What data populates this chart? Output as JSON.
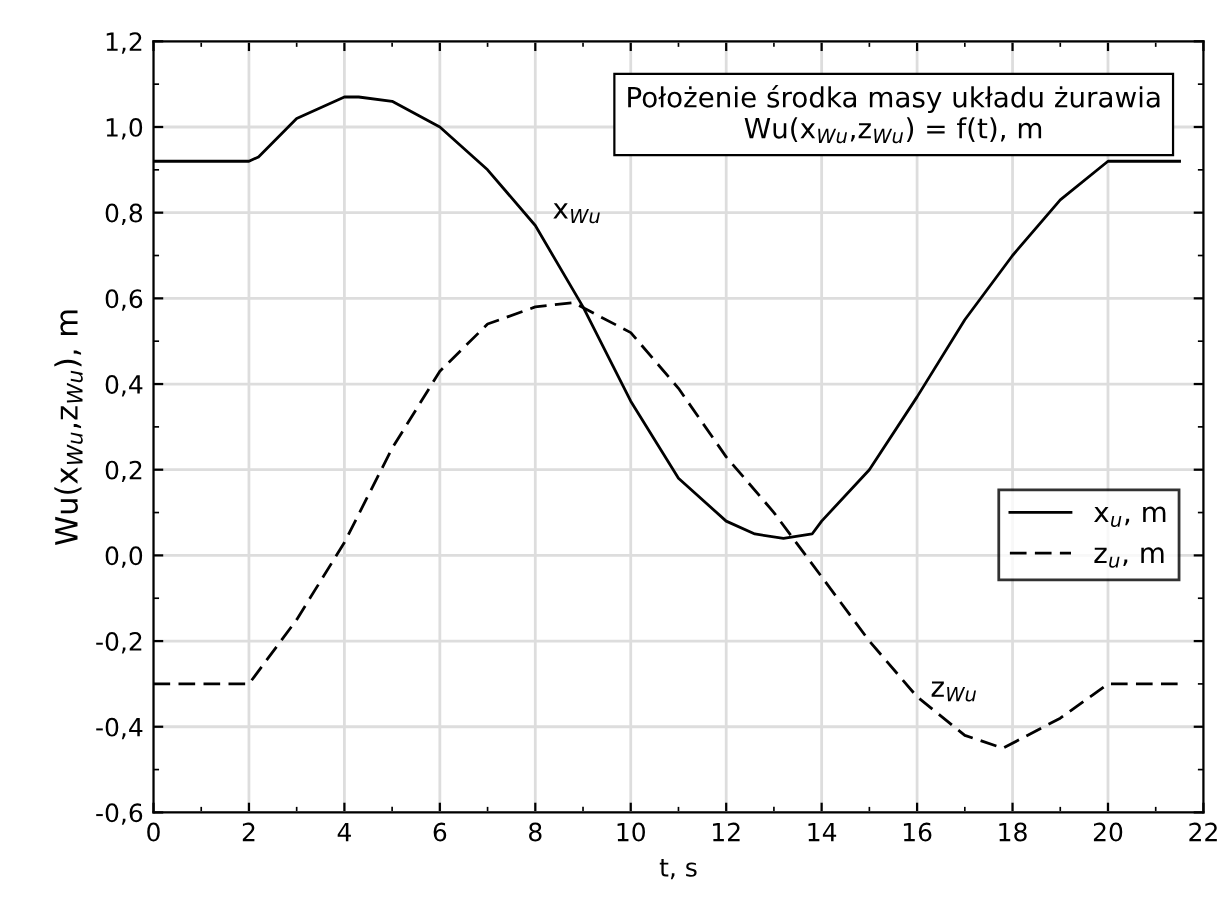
{
  "chart_data": {
    "type": "line",
    "title": "Położenie środka masy układu żurawia\nWu(x$_{Wu}$,z$_{Wu}$) = f(t), m",
    "xlabel": "t, s",
    "ylabel": "Wu(x$_{Wu}$,z$_{Wu}$), m",
    "series": [
      {
        "name": "x$_{u}$, m",
        "color": "#000000",
        "line_style": "solid",
        "x": [
          0,
          1,
          2,
          2.2,
          3,
          4,
          4.3,
          5,
          6,
          7,
          8,
          9,
          10,
          11,
          12,
          12.6,
          13.2,
          13.8,
          14,
          15,
          16,
          17,
          18,
          19,
          20,
          21.5
        ],
        "values": [
          0.92,
          0.92,
          0.92,
          0.93,
          1.02,
          1.07,
          1.07,
          1.06,
          1.0,
          0.9,
          0.77,
          0.58,
          0.36,
          0.18,
          0.08,
          0.05,
          0.04,
          0.05,
          0.08,
          0.2,
          0.37,
          0.55,
          0.7,
          0.83,
          0.92,
          0.92
        ]
      },
      {
        "name": "z$_{u}$, m",
        "color": "#000000",
        "line_style": "dashed",
        "x": [
          0,
          1,
          2,
          3,
          4,
          5,
          6,
          7,
          8,
          8.8,
          10,
          11,
          12,
          13,
          14,
          15,
          16,
          17,
          17.8,
          19,
          20,
          21.5
        ],
        "values": [
          -0.3,
          -0.3,
          -0.3,
          -0.15,
          0.03,
          0.25,
          0.43,
          0.54,
          0.58,
          0.59,
          0.52,
          0.39,
          0.23,
          0.1,
          -0.05,
          -0.2,
          -0.33,
          -0.42,
          -0.45,
          -0.38,
          -0.3,
          -0.3
        ]
      }
    ],
    "annotations": [
      "x$_{Wu}$",
      "z$_{Wu}$"
    ],
    "xlim": [
      0,
      22
    ],
    "xticks": [
      0,
      2,
      4,
      6,
      8,
      10,
      12,
      14,
      16,
      18,
      20,
      22
    ],
    "ylim": [
      -0.6,
      1.2
    ],
    "yticks": [
      {
        "value": -0.6,
        "label": "-0,6"
      },
      {
        "value": -0.4,
        "label": "-0,4"
      },
      {
        "value": -0.2,
        "label": "-0,2"
      },
      {
        "value": 0,
        "label": "0,0"
      },
      {
        "value": 0.2,
        "label": "0,2"
      },
      {
        "value": 0.4,
        "label": "0,4"
      },
      {
        "value": 0.6,
        "label": "0,6"
      },
      {
        "value": 0.8,
        "label": "0,8"
      },
      {
        "value": 1.0,
        "label": "1,0"
      },
      {
        "value": 1.2,
        "label": "1,2"
      }
    ],
    "grid": true,
    "legend": "right"
  }
}
